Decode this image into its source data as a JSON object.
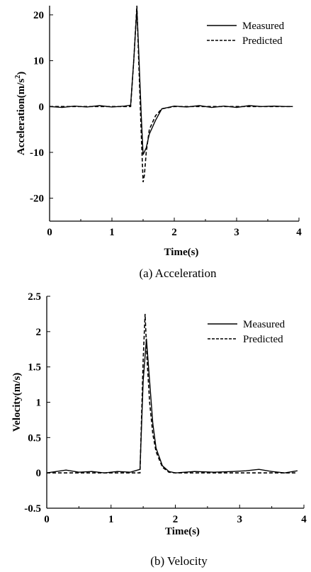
{
  "chart_data": [
    {
      "type": "line",
      "caption": "(a)  Acceleration",
      "xlabel": "Time(s)",
      "ylabel_main": "Acceleration(m/s",
      "ylabel_sup": "2",
      "ylabel_tail": ")",
      "xlim": [
        0,
        4
      ],
      "ylim": [
        -25,
        22
      ],
      "xticks": [
        "0",
        "1",
        "2",
        "3",
        "4"
      ],
      "xtick_values": [
        0,
        1,
        2,
        3,
        4
      ],
      "yticks": [
        "20",
        "10",
        "0",
        "-10",
        "-20"
      ],
      "ytick_values": [
        20,
        10,
        0,
        -10,
        -20
      ],
      "grid": false,
      "legend_position": "top-right",
      "series": [
        {
          "name": "Measured",
          "style": "solid",
          "x": [
            0,
            0.2,
            0.4,
            0.6,
            0.8,
            1.0,
            1.2,
            1.3,
            1.35,
            1.4,
            1.43,
            1.47,
            1.5,
            1.55,
            1.6,
            1.7,
            1.8,
            2.0,
            2.2,
            2.4,
            2.6,
            2.8,
            3.0,
            3.2,
            3.4,
            3.6,
            3.8,
            3.9
          ],
          "y": [
            0,
            -0.2,
            0.1,
            -0.1,
            0.2,
            -0.1,
            0.1,
            0.3,
            10,
            21.5,
            12,
            -2,
            -10.5,
            -9,
            -6,
            -3,
            -0.5,
            0.1,
            -0.1,
            0.2,
            -0.2,
            0.1,
            -0.2,
            0.2,
            0,
            0.1,
            0,
            0
          ]
        },
        {
          "name": "Predicted",
          "style": "dashed",
          "x": [
            0,
            0.5,
            1.0,
            1.3,
            1.35,
            1.4,
            1.43,
            1.47,
            1.5,
            1.52,
            1.55,
            1.6,
            1.7,
            1.8,
            2.0,
            2.5,
            3.0,
            3.5,
            3.9
          ],
          "y": [
            0,
            0,
            0,
            0,
            10,
            22,
            10,
            -6,
            -16.5,
            -15,
            -10,
            -5,
            -2,
            -0.5,
            0,
            0,
            0,
            0,
            0
          ]
        }
      ]
    },
    {
      "type": "line",
      "caption": "(b) Velocity",
      "xlabel": "Time(s)",
      "ylabel_main": "Velocity(m/s)",
      "ylabel_sup": "",
      "ylabel_tail": "",
      "xlim": [
        0,
        4
      ],
      "ylim": [
        -0.5,
        2.5
      ],
      "xticks": [
        "0",
        "1",
        "2",
        "3",
        "4"
      ],
      "xtick_values": [
        0,
        1,
        2,
        3,
        4
      ],
      "yticks": [
        "2.5",
        "2",
        "1.5",
        "1",
        "0.5",
        "0",
        "-0.5"
      ],
      "ytick_values": [
        2.5,
        2,
        1.5,
        1,
        0.5,
        0,
        -0.5
      ],
      "grid": false,
      "legend_position": "top-right",
      "series": [
        {
          "name": "Measured",
          "style": "solid",
          "x": [
            0,
            0.15,
            0.3,
            0.5,
            0.7,
            0.9,
            1.1,
            1.3,
            1.45,
            1.5,
            1.55,
            1.6,
            1.65,
            1.7,
            1.8,
            1.9,
            2.0,
            2.3,
            2.6,
            2.9,
            3.1,
            3.3,
            3.5,
            3.7,
            3.9
          ],
          "y": [
            0,
            0.02,
            0.04,
            0.01,
            0.02,
            0.0,
            0.02,
            0.01,
            0.05,
            1.3,
            1.9,
            1.3,
            0.7,
            0.35,
            0.1,
            0.02,
            0.0,
            0.02,
            0.01,
            0.02,
            0.03,
            0.05,
            0.02,
            0.0,
            0.03
          ]
        },
        {
          "name": "Predicted",
          "style": "dashed",
          "x": [
            0,
            0.5,
            1.0,
            1.45,
            1.5,
            1.53,
            1.56,
            1.6,
            1.65,
            1.7,
            1.8,
            1.9,
            2.0,
            2.5,
            3.0,
            3.5,
            3.9
          ],
          "y": [
            0,
            0,
            0,
            0,
            1.6,
            2.25,
            1.6,
            1.0,
            0.55,
            0.3,
            0.08,
            0.01,
            0,
            0,
            0,
            0,
            0
          ]
        }
      ]
    }
  ]
}
